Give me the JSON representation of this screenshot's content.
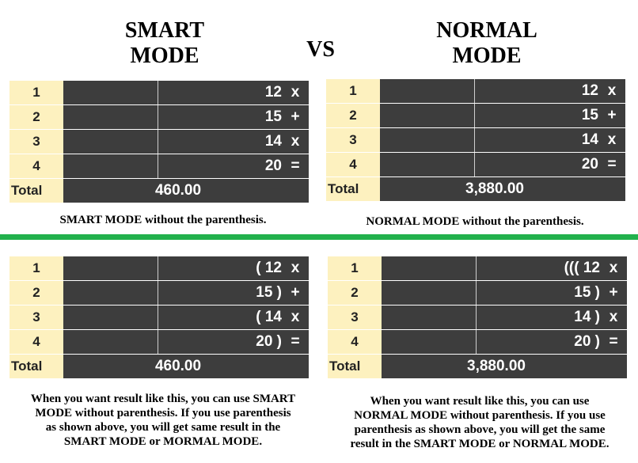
{
  "headings": {
    "left_line1": "SMART",
    "left_line2": "MODE",
    "vs": "VS",
    "right_line1": "NORMAL",
    "right_line2": "MODE"
  },
  "top_left": {
    "rows": [
      {
        "num": "1",
        "value": "12",
        "op": "x"
      },
      {
        "num": "2",
        "value": "15",
        "op": "+"
      },
      {
        "num": "3",
        "value": "14",
        "op": "x"
      },
      {
        "num": "4",
        "value": "20",
        "op": "="
      }
    ],
    "total_label": "Total",
    "total_value": "460.00"
  },
  "top_right": {
    "rows": [
      {
        "num": "1",
        "value": "12",
        "op": "x"
      },
      {
        "num": "2",
        "value": "15",
        "op": "+"
      },
      {
        "num": "3",
        "value": "14",
        "op": "x"
      },
      {
        "num": "4",
        "value": "20",
        "op": "="
      }
    ],
    "total_label": "Total",
    "total_value": "3,880.00"
  },
  "caption_left": "SMART MODE without the parenthesis.",
  "caption_right": "NORMAL MODE without the parenthesis.",
  "bottom_left": {
    "rows": [
      {
        "num": "1",
        "value": "( 12",
        "op": "x"
      },
      {
        "num": "2",
        "value": "15 )",
        "op": "+"
      },
      {
        "num": "3",
        "value": "( 14",
        "op": "x"
      },
      {
        "num": "4",
        "value": "20 )",
        "op": "="
      }
    ],
    "total_label": "Total",
    "total_value": "460.00"
  },
  "bottom_right": {
    "rows": [
      {
        "num": "1",
        "value": "((( 12",
        "op": "x"
      },
      {
        "num": "2",
        "value": "15 )",
        "op": "+"
      },
      {
        "num": "3",
        "value": "14 )",
        "op": "x"
      },
      {
        "num": "4",
        "value": "20 )",
        "op": "="
      }
    ],
    "total_label": "Total",
    "total_value": "3,880.00"
  },
  "para_left": {
    "line1": "When you want result like this, you can use SMART",
    "line2": "MODE without parenthesis.  If you use parenthesis",
    "line3": "as shown above, you will get same result in the",
    "line4": "SMART MODE or MORMAL MODE."
  },
  "para_right": {
    "line1": "When you want result like this, you can use",
    "line2": "NORMAL MODE without parenthesis.  If you use",
    "line3": "parenthesis as shown above, you will get the same",
    "line4": "result in the SMART MODE or NORMAL MODE."
  },
  "colors": {
    "divider": "#22b14c",
    "number_cell": "#fdf1bf",
    "dark_cell": "#3d3d3d"
  }
}
